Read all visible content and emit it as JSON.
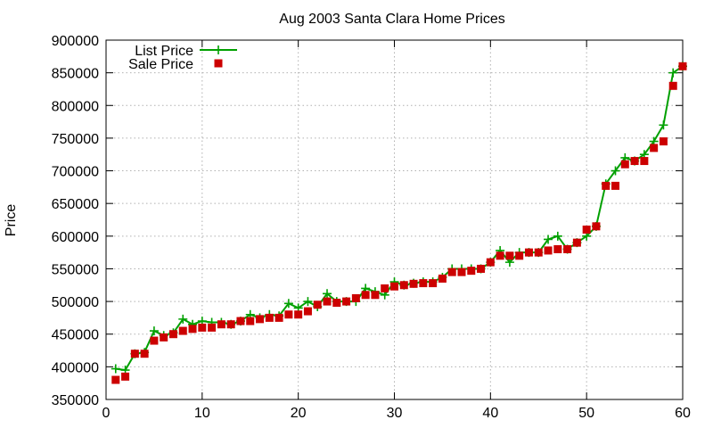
{
  "chart_data": {
    "type": "line",
    "title": "Aug 2003 Santa Clara Home Prices",
    "xlabel": "",
    "ylabel": "Price",
    "xlim": [
      0,
      60
    ],
    "ylim": [
      350000,
      900000
    ],
    "x_ticks": [
      0,
      10,
      20,
      30,
      40,
      50,
      60
    ],
    "y_ticks": [
      350000,
      400000,
      450000,
      500000,
      550000,
      600000,
      650000,
      700000,
      750000,
      800000,
      850000,
      900000
    ],
    "grid": true,
    "legend_position": "top-left",
    "series": [
      {
        "name": "List Price",
        "style": "line-with-plus-markers",
        "color": "#00a000",
        "points": [
          [
            1,
            397000
          ],
          [
            2,
            395000
          ],
          [
            3,
            420000
          ],
          [
            4,
            422000
          ],
          [
            5,
            455000
          ],
          [
            6,
            448000
          ],
          [
            7,
            452000
          ],
          [
            8,
            473000
          ],
          [
            9,
            465000
          ],
          [
            10,
            470000
          ],
          [
            11,
            468000
          ],
          [
            12,
            468000
          ],
          [
            13,
            465000
          ],
          [
            14,
            470000
          ],
          [
            15,
            480000
          ],
          [
            16,
            475000
          ],
          [
            17,
            480000
          ],
          [
            18,
            478000
          ],
          [
            19,
            497000
          ],
          [
            20,
            490000
          ],
          [
            21,
            500000
          ],
          [
            22,
            492000
          ],
          [
            23,
            512000
          ],
          [
            24,
            500000
          ],
          [
            25,
            500000
          ],
          [
            26,
            500000
          ],
          [
            27,
            520000
          ],
          [
            28,
            515000
          ],
          [
            29,
            510000
          ],
          [
            30,
            530000
          ],
          [
            31,
            525000
          ],
          [
            32,
            528000
          ],
          [
            33,
            530000
          ],
          [
            34,
            530000
          ],
          [
            35,
            537000
          ],
          [
            36,
            550000
          ],
          [
            37,
            550000
          ],
          [
            38,
            550000
          ],
          [
            39,
            550000
          ],
          [
            40,
            560000
          ],
          [
            41,
            578000
          ],
          [
            42,
            560000
          ],
          [
            43,
            575000
          ],
          [
            44,
            575000
          ],
          [
            45,
            575000
          ],
          [
            46,
            595000
          ],
          [
            47,
            600000
          ],
          [
            48,
            580000
          ],
          [
            49,
            590000
          ],
          [
            50,
            600000
          ],
          [
            51,
            615000
          ],
          [
            52,
            680000
          ],
          [
            53,
            700000
          ],
          [
            54,
            720000
          ],
          [
            55,
            715000
          ],
          [
            56,
            725000
          ],
          [
            57,
            745000
          ],
          [
            58,
            770000
          ],
          [
            59,
            850000
          ],
          [
            60,
            860000
          ]
        ]
      },
      {
        "name": "Sale Price",
        "style": "square-markers",
        "color": "#cc0000",
        "points": [
          [
            1,
            380000
          ],
          [
            2,
            385000
          ],
          [
            3,
            420000
          ],
          [
            4,
            420000
          ],
          [
            5,
            440000
          ],
          [
            6,
            445000
          ],
          [
            7,
            450000
          ],
          [
            8,
            455000
          ],
          [
            9,
            458000
          ],
          [
            10,
            460000
          ],
          [
            11,
            460000
          ],
          [
            12,
            465000
          ],
          [
            13,
            465000
          ],
          [
            14,
            470000
          ],
          [
            15,
            470000
          ],
          [
            16,
            473000
          ],
          [
            17,
            475000
          ],
          [
            18,
            475000
          ],
          [
            19,
            480000
          ],
          [
            20,
            480000
          ],
          [
            21,
            485000
          ],
          [
            22,
            495000
          ],
          [
            23,
            500000
          ],
          [
            24,
            498000
          ],
          [
            25,
            500000
          ],
          [
            26,
            505000
          ],
          [
            27,
            510000
          ],
          [
            28,
            510000
          ],
          [
            29,
            520000
          ],
          [
            30,
            523000
          ],
          [
            31,
            525000
          ],
          [
            32,
            527000
          ],
          [
            33,
            528000
          ],
          [
            34,
            528000
          ],
          [
            35,
            535000
          ],
          [
            36,
            545000
          ],
          [
            37,
            545000
          ],
          [
            38,
            547000
          ],
          [
            39,
            550000
          ],
          [
            40,
            560000
          ],
          [
            41,
            570000
          ],
          [
            42,
            570000
          ],
          [
            43,
            570000
          ],
          [
            44,
            575000
          ],
          [
            45,
            575000
          ],
          [
            46,
            578000
          ],
          [
            47,
            580000
          ],
          [
            48,
            580000
          ],
          [
            49,
            590000
          ],
          [
            50,
            610000
          ],
          [
            51,
            615000
          ],
          [
            52,
            677000
          ],
          [
            53,
            677000
          ],
          [
            54,
            710000
          ],
          [
            55,
            715000
          ],
          [
            56,
            715000
          ],
          [
            57,
            735000
          ],
          [
            58,
            745000
          ],
          [
            59,
            830000
          ],
          [
            60,
            860000
          ]
        ]
      }
    ]
  }
}
